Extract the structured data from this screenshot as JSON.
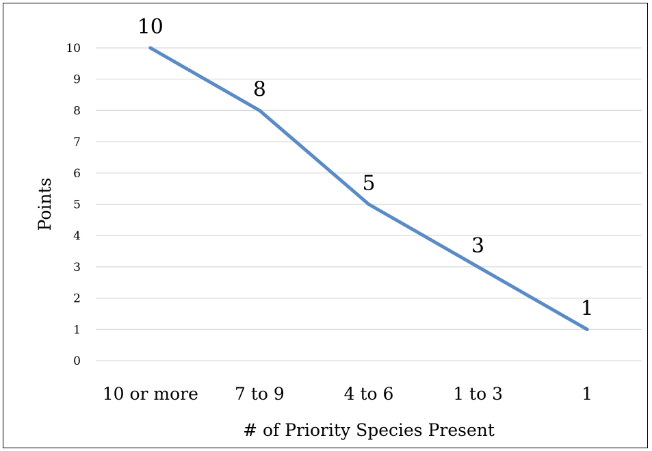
{
  "chart_data": {
    "type": "line",
    "categories": [
      "10 or more",
      "7 to 9",
      "4 to 6",
      "1 to 3",
      "1"
    ],
    "series": [
      {
        "values": [
          10,
          8,
          5,
          3,
          1
        ],
        "color": "#5B8BC5"
      }
    ],
    "data_labels": [
      "10",
      "8",
      "5",
      "3",
      "1"
    ],
    "xlabel": "# of Priority Species Present",
    "ylabel": "Points",
    "ylim": [
      0,
      10
    ],
    "yticks": [
      "0",
      "1",
      "2",
      "3",
      "4",
      "5",
      "6",
      "7",
      "8",
      "9",
      "10"
    ],
    "grid": true,
    "legend": "none",
    "gridline_color": "#D9D9D9"
  }
}
